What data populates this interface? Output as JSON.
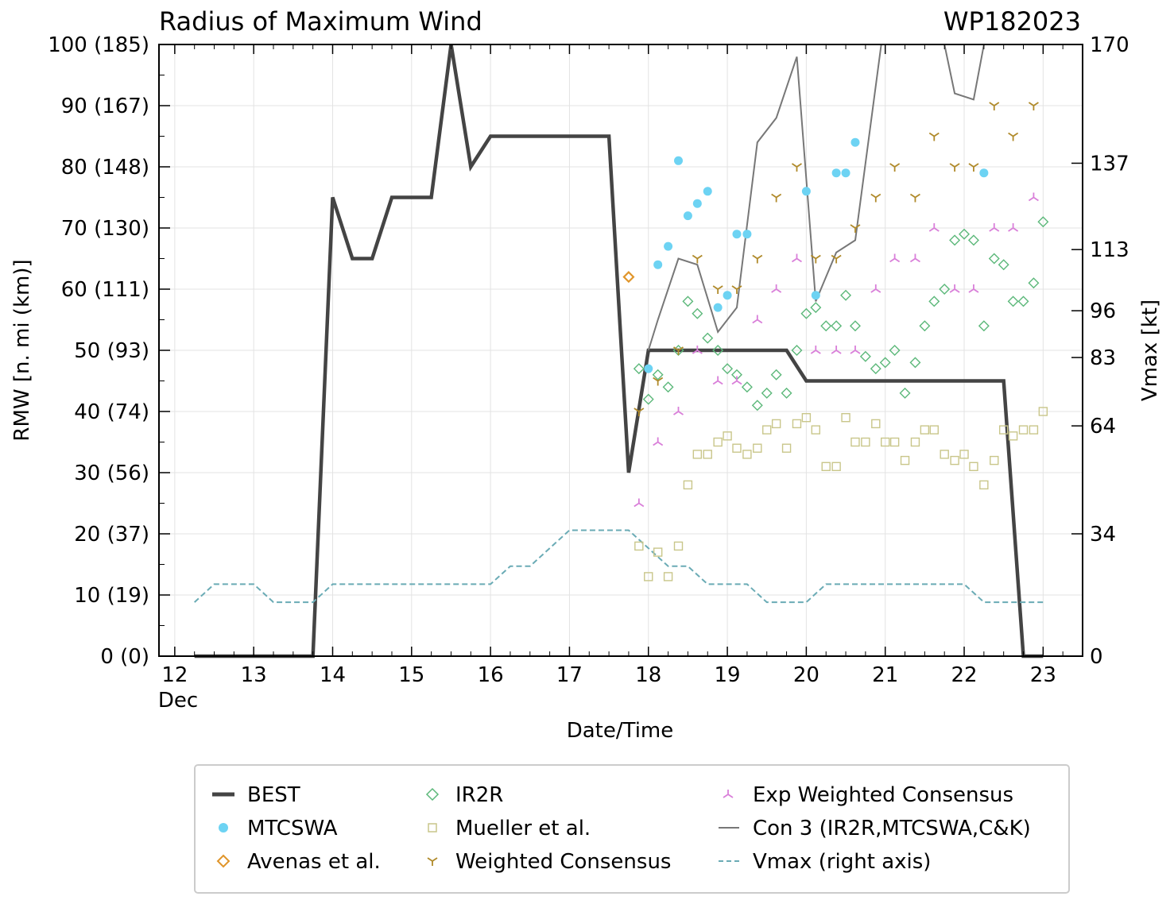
{
  "chart_data": {
    "type": "line",
    "title": "Radius of Maximum Wind",
    "storm_id": "WP182023",
    "xlabel": "Date/Time",
    "ylabel": "RMW [n. mi (km)]",
    "ylabel_right": "Vmax [kt]",
    "xlim": [
      11.8,
      23.5
    ],
    "ylim": [
      0,
      100
    ],
    "ylim_right": [
      0,
      170
    ],
    "x_ticks": [
      12,
      13,
      14,
      15,
      16,
      17,
      18,
      19,
      20,
      21,
      22,
      23
    ],
    "x_tick_labels": [
      "12",
      "13",
      "14",
      "15",
      "16",
      "17",
      "18",
      "19",
      "20",
      "21",
      "22",
      "23"
    ],
    "x_month_label": "Dec",
    "y_ticks": [
      0,
      10,
      20,
      30,
      40,
      50,
      60,
      70,
      80,
      90,
      100
    ],
    "y_tick_labels": [
      "0 (0)",
      "10 (19)",
      "20 (37)",
      "30 (56)",
      "40 (74)",
      "50 (93)",
      "60 (111)",
      "70 (130)",
      "80 (148)",
      "90 (167)",
      "100 (185)"
    ],
    "right_ticks": [
      0,
      34,
      64,
      83,
      96,
      113,
      137,
      170
    ],
    "right_tick_labels": [
      "0",
      "34",
      "64",
      "83",
      "96",
      "113",
      "137",
      "170"
    ],
    "legend": {
      "best": "BEST",
      "mtcswa": "MTCSWA",
      "avenas": "Avenas et al.",
      "ir2r": "IR2R",
      "mueller": "Mueller et al.",
      "wcons": "Weighted Consensus",
      "expw": "Exp Weighted Consensus",
      "con3": "Con 3 (IR2R,MTCSWA,C&K)",
      "vmax": "Vmax (right axis)"
    },
    "series": [
      {
        "name": "BEST",
        "style": "line",
        "color": "#444444",
        "x": [
          12.25,
          12.5,
          12.75,
          13.0,
          13.25,
          13.5,
          13.75,
          14.0,
          14.25,
          14.5,
          14.75,
          15.0,
          15.25,
          15.5,
          15.75,
          16.0,
          16.25,
          16.5,
          16.75,
          17.0,
          17.25,
          17.5,
          17.75,
          18.0,
          18.25,
          18.5,
          18.75,
          19.0,
          19.25,
          19.5,
          19.75,
          20.0,
          20.25,
          20.5,
          20.75,
          21.0,
          21.25,
          21.5,
          21.75,
          22.0,
          22.25,
          22.5,
          22.75,
          23.0
        ],
        "y": [
          0,
          0,
          0,
          0,
          0,
          0,
          0,
          75,
          65,
          65,
          75,
          75,
          75,
          100,
          80,
          85,
          85,
          85,
          85,
          85,
          85,
          85,
          30,
          50,
          50,
          50,
          50,
          50,
          50,
          50,
          50,
          45,
          45,
          45,
          45,
          45,
          45,
          45,
          45,
          45,
          45,
          45,
          0,
          0
        ]
      },
      {
        "name": "Vmax (right axis)",
        "style": "dashed",
        "axis": "right",
        "color": "#6aabb5",
        "x": [
          12.25,
          12.5,
          12.75,
          13.0,
          13.25,
          13.5,
          13.75,
          14.0,
          14.25,
          14.5,
          14.75,
          15.0,
          15.25,
          15.5,
          15.75,
          16.0,
          16.25,
          16.5,
          16.75,
          17.0,
          17.25,
          17.5,
          17.75,
          18.0,
          18.25,
          18.5,
          18.75,
          19.0,
          19.25,
          19.5,
          19.75,
          20.0,
          20.25,
          20.5,
          20.75,
          21.0,
          21.25,
          21.5,
          21.75,
          22.0,
          22.25,
          22.5,
          22.75,
          23.0
        ],
        "y": [
          15,
          20,
          20,
          20,
          15,
          15,
          15,
          20,
          20,
          20,
          20,
          20,
          20,
          20,
          20,
          20,
          25,
          25,
          30,
          35,
          35,
          35,
          35,
          30,
          25,
          25,
          20,
          20,
          20,
          15,
          15,
          15,
          20,
          20,
          20,
          20,
          20,
          20,
          20,
          20,
          15,
          15,
          15,
          15
        ]
      },
      {
        "name": "Con 3 (IR2R,MTCSWA,C&K)",
        "style": "line",
        "color": "#777777",
        "x": [
          18.0,
          18.12,
          18.38,
          18.62,
          18.88,
          19.12,
          19.38,
          19.62,
          19.88,
          20.12,
          20.38,
          20.62,
          20.95,
          21.75,
          21.88,
          22.12,
          22.25
        ],
        "y": [
          50,
          55,
          65,
          64,
          53,
          57,
          84,
          88,
          98,
          58,
          66,
          68,
          100,
          100,
          92,
          91,
          100
        ]
      },
      {
        "name": "MTCSWA",
        "style": "marker",
        "marker": "circle",
        "color": "#6dd3f3",
        "x": [
          18.0,
          18.12,
          18.25,
          18.38,
          18.5,
          18.62,
          18.75,
          18.88,
          19.0,
          19.12,
          19.25,
          20.0,
          20.12,
          20.38,
          20.5,
          20.62,
          22.25
        ],
        "y": [
          47,
          64,
          67,
          81,
          72,
          74,
          76,
          57,
          59,
          69,
          69,
          76,
          59,
          79,
          79,
          84,
          79
        ]
      },
      {
        "name": "Avenas et al.",
        "style": "marker",
        "marker": "diamond",
        "color": "#e0952a",
        "x": [
          17.75
        ],
        "y": [
          62
        ]
      },
      {
        "name": "IR2R",
        "style": "marker",
        "marker": "diamond",
        "color": "#5cb87a",
        "x": [
          17.88,
          18.0,
          18.12,
          18.25,
          18.38,
          18.5,
          18.62,
          18.75,
          18.88,
          19.0,
          19.12,
          19.25,
          19.38,
          19.5,
          19.62,
          19.75,
          19.88,
          20.0,
          20.12,
          20.25,
          20.38,
          20.5,
          20.62,
          20.75,
          20.88,
          21.0,
          21.12,
          21.25,
          21.38,
          21.5,
          21.62,
          21.75,
          21.88,
          22.0,
          22.12,
          22.25,
          22.38,
          22.5,
          22.62,
          22.75,
          22.88,
          23.0
        ],
        "y": [
          47,
          42,
          46,
          44,
          50,
          58,
          56,
          52,
          50,
          47,
          46,
          44,
          41,
          43,
          46,
          43,
          50,
          56,
          57,
          54,
          54,
          59,
          54,
          49,
          47,
          48,
          50,
          43,
          48,
          54,
          58,
          60,
          68,
          69,
          68,
          54,
          65,
          64,
          58,
          58,
          61,
          71
        ]
      },
      {
        "name": "Mueller et al.",
        "style": "marker",
        "marker": "square",
        "color": "#c9c68a",
        "x": [
          17.88,
          18.0,
          18.12,
          18.25,
          18.38,
          18.5,
          18.62,
          18.75,
          18.88,
          19.0,
          19.12,
          19.25,
          19.38,
          19.5,
          19.62,
          19.75,
          19.88,
          20.0,
          20.12,
          20.25,
          20.38,
          20.5,
          20.62,
          20.75,
          20.88,
          21.0,
          21.12,
          21.25,
          21.38,
          21.5,
          21.62,
          21.75,
          21.88,
          22.0,
          22.12,
          22.25,
          22.38,
          22.5,
          22.62,
          22.75,
          22.88,
          23.0
        ],
        "y": [
          18,
          13,
          17,
          13,
          18,
          28,
          33,
          33,
          35,
          36,
          34,
          33,
          34,
          37,
          38,
          34,
          38,
          39,
          37,
          31,
          31,
          39,
          35,
          35,
          38,
          35,
          35,
          32,
          35,
          37,
          37,
          33,
          32,
          33,
          31,
          28,
          32,
          37,
          36,
          37,
          37,
          40
        ]
      },
      {
        "name": "Weighted Consensus",
        "style": "marker",
        "marker": "tri_down",
        "color": "#b08a2a",
        "x": [
          17.88,
          18.12,
          18.38,
          18.62,
          18.88,
          19.12,
          19.38,
          19.62,
          19.88,
          20.12,
          20.38,
          20.62,
          20.88,
          21.12,
          21.38,
          21.62,
          21.88,
          22.12,
          22.38,
          22.62,
          22.88
        ],
        "y": [
          40,
          45,
          50,
          65,
          60,
          60,
          65,
          75,
          80,
          65,
          65,
          70,
          75,
          80,
          75,
          85,
          80,
          80,
          90,
          85,
          90
        ]
      },
      {
        "name": "Exp Weighted Consensus",
        "style": "marker",
        "marker": "tri_up",
        "color": "#d97fd9",
        "x": [
          17.88,
          18.12,
          18.38,
          18.62,
          18.88,
          19.12,
          19.38,
          19.62,
          19.88,
          20.12,
          20.38,
          20.62,
          20.88,
          21.12,
          21.38,
          21.62,
          21.88,
          22.12,
          22.38,
          22.62,
          22.88
        ],
        "y": [
          25,
          35,
          40,
          50,
          45,
          45,
          55,
          60,
          65,
          50,
          50,
          50,
          60,
          65,
          65,
          70,
          60,
          60,
          70,
          70,
          75
        ]
      }
    ]
  }
}
